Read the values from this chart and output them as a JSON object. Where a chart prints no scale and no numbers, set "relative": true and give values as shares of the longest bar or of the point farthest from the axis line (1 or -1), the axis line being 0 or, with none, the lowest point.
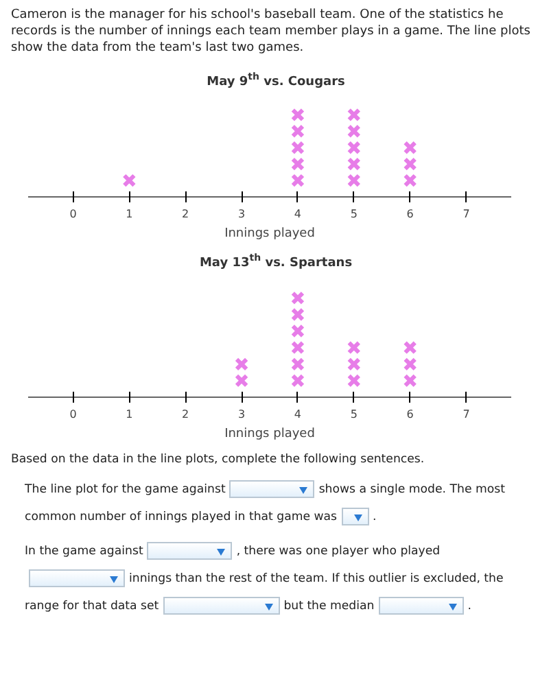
{
  "chart_data": [
    {
      "type": "scatter",
      "title": "May 9$^{th}$ vs. Cougars",
      "xlabel": "Innings played",
      "annotations": [
        "Cameron is the manager for his school's baseball team. One of the statistics he records is the number of innings each team member plays in a game. The line plots show the data from the team's last two games."
      ],
      "series": [
        {
          "color": "#e77de8",
          "x": [
            1,
            4,
            4,
            4,
            4,
            4,
            5,
            5,
            5,
            5,
            5,
            6,
            6,
            6
          ],
          "values": [
            0.2,
            0.2,
            0.4,
            0.6,
            0.8,
            1,
            0.2,
            0.4,
            0.6,
            0.8,
            1,
            0.2,
            0.4,
            0.6
          ]
        }
      ],
      "relative": true,
      "xlim": [
        -0.8,
        7.8
      ],
      "xticks": [
        0,
        1,
        2,
        3,
        4,
        5,
        6,
        7
      ],
      "grid": false,
      "marker": "cross"
    },
    {
      "type": "scatter",
      "title": "May 13$^{th}$ vs. Spartans",
      "xlabel": "Innings played",
      "annotations": [
        "Based on the data in the line plots, complete the following sentences.",
        "The line plot for the game against",
        "shows a single mode. The most",
        "common number of innings played in that game was",
        ".",
        "In the game against",
        ", there was one player who played",
        "innings than the rest of the team. If this outlier is excluded, the",
        "range for that data set",
        "but the median",
        "."
      ],
      "series": [
        {
          "color": "#e77de8",
          "x": [
            3,
            3,
            4,
            4,
            4,
            4,
            4,
            4,
            5,
            5,
            5,
            6,
            6,
            6
          ],
          "values": [
            0.167,
            0.333,
            0.167,
            0.333,
            0.5,
            0.667,
            0.833,
            1,
            0.167,
            0.333,
            0.5,
            0.167,
            0.333,
            0.5
          ]
        }
      ],
      "relative": true,
      "xlim": [
        -0.8,
        7.8
      ],
      "xticks": [
        0,
        1,
        2,
        3,
        4,
        5,
        6,
        7
      ],
      "grid": false,
      "marker": "cross"
    }
  ]
}
